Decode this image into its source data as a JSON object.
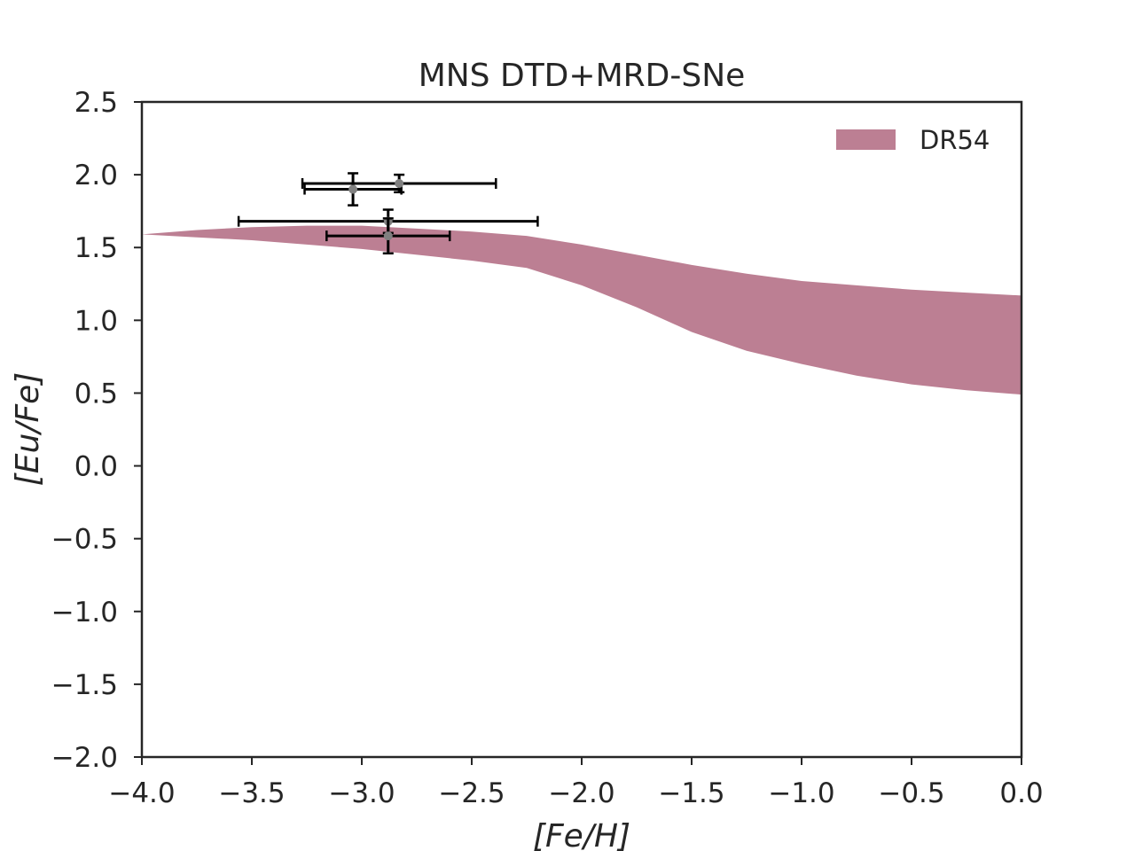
{
  "chart_data": {
    "type": "area",
    "title": "MNS DTD+MRD-SNe",
    "xlabel": "[Fe/H]",
    "ylabel": "[Eu/Fe]",
    "xlim": [
      -4.0,
      0.0
    ],
    "ylim": [
      -2.0,
      2.5
    ],
    "xticks": [
      -4.0,
      -3.5,
      -3.0,
      -2.5,
      -2.0,
      -1.5,
      -1.0,
      -0.5,
      0.0
    ],
    "yticks": [
      -2.0,
      -1.5,
      -1.0,
      -0.5,
      0.0,
      0.5,
      1.0,
      1.5,
      2.0,
      2.5
    ],
    "xtick_labels": [
      "−4.0",
      "−3.5",
      "−3.0",
      "−2.5",
      "−2.0",
      "−1.5",
      "−1.0",
      "−0.5",
      "0.0"
    ],
    "ytick_labels": [
      "−2.0",
      "−1.5",
      "−1.0",
      "−0.5",
      "0.0",
      "0.5",
      "1.0",
      "1.5",
      "2.0",
      "2.5"
    ],
    "grid": false,
    "legend_position": "upper right",
    "legend": [
      {
        "label": "DR54",
        "color": "#bc7f93"
      }
    ],
    "band": {
      "name": "DR54",
      "color": "#bc7f93",
      "x": [
        -4.0,
        -3.75,
        -3.5,
        -3.25,
        -3.0,
        -2.75,
        -2.5,
        -2.25,
        -2.0,
        -1.75,
        -1.5,
        -1.25,
        -1.0,
        -0.75,
        -0.5,
        -0.25,
        0.0
      ],
      "upper": [
        1.59,
        1.62,
        1.64,
        1.65,
        1.65,
        1.63,
        1.61,
        1.58,
        1.52,
        1.45,
        1.38,
        1.32,
        1.27,
        1.24,
        1.21,
        1.19,
        1.17
      ],
      "lower": [
        1.59,
        1.57,
        1.55,
        1.52,
        1.49,
        1.45,
        1.41,
        1.36,
        1.24,
        1.09,
        0.92,
        0.79,
        0.7,
        0.62,
        0.56,
        0.52,
        0.49
      ]
    },
    "points": [
      {
        "x": -3.04,
        "y": 1.9,
        "xerr": 0.22,
        "yerr": 0.11
      },
      {
        "x": -2.83,
        "y": 1.94,
        "xerr": 0.44,
        "yerr": 0.06
      },
      {
        "x": -2.88,
        "y": 1.68,
        "xerr": 0.68,
        "yerr": 0.08
      },
      {
        "x": -2.88,
        "y": 1.58,
        "xerr": 0.28,
        "yerr": 0.12
      }
    ],
    "marker_color": "#808080",
    "errorbar_color": "#000000"
  }
}
